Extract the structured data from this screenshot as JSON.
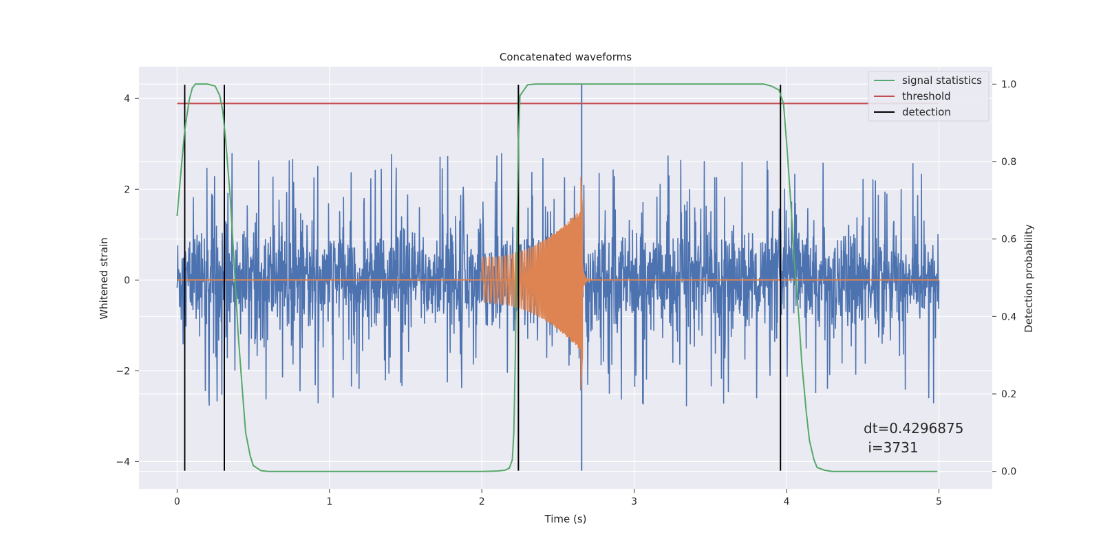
{
  "chart_data": {
    "type": "line",
    "title": "Concatenated waveforms",
    "xlabel": "Time (s)",
    "ylabel": "Whitened strain",
    "y2label": "Detection probability",
    "xlim": [
      -0.25,
      5.35
    ],
    "ylim": [
      -4.6,
      4.7
    ],
    "y2lim": [
      -0.045,
      1.045
    ],
    "xticks": [
      0,
      1,
      2,
      3,
      4,
      5
    ],
    "xtick_labels": [
      "0",
      "1",
      "2",
      "3",
      "4",
      "5"
    ],
    "yticks": [
      -4,
      -2,
      0,
      2,
      4
    ],
    "ytick_labels": [
      "−4",
      "−2",
      "0",
      "2",
      "4"
    ],
    "y2ticks": [
      0.0,
      0.2,
      0.4,
      0.6,
      0.8,
      1.0
    ],
    "y2tick_labels": [
      "0.0",
      "0.2",
      "0.4",
      "0.6",
      "0.8",
      "1.0"
    ],
    "grid": true,
    "legend_placement": "top-right",
    "annotation": [
      "dt=0.4296875",
      " i=3731"
    ],
    "colors": {
      "background": "#eaeaf2",
      "grid": "#ffffff",
      "strain": "#4c72b0",
      "template": "#dd8452",
      "signal_statistics": "#55a868",
      "threshold": "#c44e52",
      "detection": "#000000"
    },
    "series": [
      {
        "name": "signal statistics",
        "axis": "right",
        "x": [
          0.0,
          0.02,
          0.05,
          0.08,
          0.1,
          0.12,
          0.15,
          0.2,
          0.25,
          0.28,
          0.3,
          0.32,
          0.35,
          0.38,
          0.4,
          0.43,
          0.45,
          0.48,
          0.5,
          0.55,
          0.6,
          0.8,
          1.0,
          1.5,
          2.0,
          2.1,
          2.15,
          2.18,
          2.2,
          2.21,
          2.22,
          2.23,
          2.24,
          2.25,
          2.3,
          2.35,
          2.5,
          3.0,
          3.5,
          3.85,
          3.9,
          3.95,
          3.98,
          4.0,
          4.03,
          4.05,
          4.08,
          4.1,
          4.13,
          4.15,
          4.18,
          4.2,
          4.25,
          4.3,
          4.5,
          4.99
        ],
        "y": [
          0.66,
          0.75,
          0.88,
          0.96,
          0.99,
          1.0,
          1.0,
          1.0,
          0.995,
          0.97,
          0.93,
          0.85,
          0.7,
          0.5,
          0.36,
          0.2,
          0.1,
          0.04,
          0.015,
          0.002,
          0.0,
          0.0,
          0.0,
          0.0,
          0.0,
          0.001,
          0.003,
          0.008,
          0.03,
          0.1,
          0.3,
          0.6,
          0.85,
          0.97,
          0.998,
          1.0,
          1.0,
          1.0,
          1.0,
          1.0,
          0.995,
          0.985,
          0.95,
          0.85,
          0.68,
          0.55,
          0.4,
          0.28,
          0.15,
          0.08,
          0.03,
          0.01,
          0.003,
          0.0,
          0.0,
          0.0
        ]
      },
      {
        "name": "threshold",
        "axis": "right",
        "x": [
          0.0,
          5.0
        ],
        "y": [
          0.95,
          0.95
        ]
      },
      {
        "name": "detection",
        "axis": "left",
        "type": "vlines",
        "x": [
          0.05,
          0.31,
          2.24,
          3.96
        ],
        "ymin": -4.2,
        "ymax": 4.3
      },
      {
        "axis": "left",
        "type": "noise-band",
        "x_range": [
          0.0,
          5.0
        ],
        "envelope_typical": 1.6,
        "peak_max": 3.4,
        "peak_min": -3.35,
        "spike": {
          "x": 2.655,
          "ymax": 4.3,
          "ymin": -4.2
        }
      },
      {
        "axis": "left",
        "type": "chirp",
        "x_start": 2.0,
        "x_end": 2.66,
        "amp_start": 0.5,
        "amp_peak_pos": 2.3,
        "amp_peak_neg": -2.5,
        "ringdown_end": 2.72
      }
    ]
  }
}
